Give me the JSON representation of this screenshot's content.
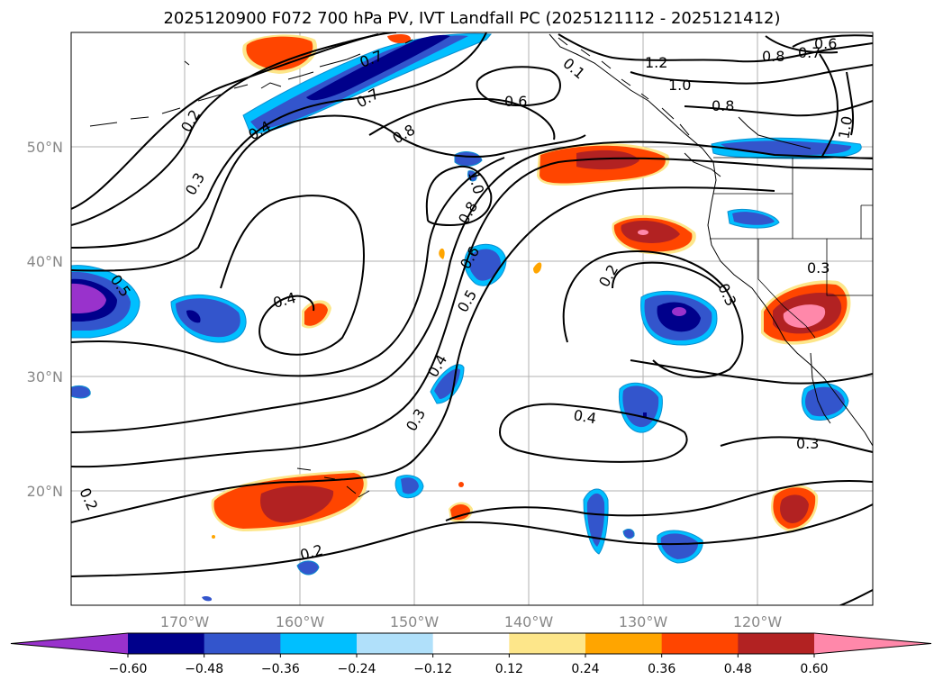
{
  "title": "2025120900 F072 700 hPa PV, IVT Landfall PC (2025121112 - 2025121412)",
  "lat_labels": [
    "50°N",
    "40°N",
    "30°N",
    "20°N"
  ],
  "lon_labels": [
    "170°W",
    "160°W",
    "150°W",
    "140°W",
    "130°W",
    "120°W"
  ],
  "colorbar": {
    "tick_labels": [
      "−0.60",
      "−0.48",
      "−0.36",
      "−0.24",
      "−0.12",
      "0.12",
      "0.24",
      "0.36",
      "0.48",
      "0.60"
    ],
    "colors": [
      "#9932cc",
      "#00008b",
      "#3355cc",
      "#00bfff",
      "#b0e0fa",
      "#ffffff",
      "#fde68a",
      "#ffa500",
      "#ff4500",
      "#b22222",
      "#ff88aa"
    ]
  },
  "contour_labels": {
    "l1": "0.2",
    "l2": "0.3",
    "l3": "0.4",
    "l4": "0.7",
    "l5": "0.6",
    "l6": "0.8",
    "l7": "1.2",
    "l8": "1.0",
    "l9": "0.8",
    "l10": "0.6",
    "l11": "0.7",
    "l12": "0.8",
    "l13": "1.0",
    "l14": "0.5",
    "l15": "0.4",
    "l16": "1.0",
    "l17": "0.8",
    "l18": "0.6",
    "l19": "0.5",
    "l20": "0.2",
    "l21": "0.3",
    "l22": "0.4",
    "l23": "0.3",
    "l24": "0.3",
    "l25": "0.4",
    "l26": "0.3",
    "l27": "0.2",
    "l28": "0.2",
    "l29": "0.1"
  }
}
